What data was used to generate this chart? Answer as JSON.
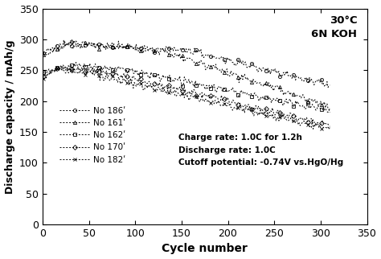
{
  "xlabel": "Cycle number",
  "ylabel": "Discharge capacity / mAh/g",
  "xlim": [
    0,
    350
  ],
  "ylim": [
    0,
    350
  ],
  "xticks": [
    0,
    50,
    100,
    150,
    200,
    250,
    300,
    350
  ],
  "yticks": [
    0,
    50,
    100,
    150,
    200,
    250,
    300,
    350
  ],
  "annotation_top": "30°C\n6N KOH",
  "annotation_box": "Charge rate: 1.0C for 1.2h\nDischarge rate: 1.0C\nCutoff potential: -0.74V vs.HgO/Hg",
  "series": [
    {
      "label": "No 186ʹ",
      "marker": "o",
      "start_y": 278,
      "peak_x": 25,
      "peak_y": 292,
      "flat_end_x": 150,
      "flat_end_y": 283,
      "end_x": 310,
      "end_y": 225
    },
    {
      "label": "No 161ʹ",
      "marker": "^",
      "start_y": 272,
      "peak_x": 30,
      "peak_y": 295,
      "flat_end_x": 130,
      "flat_end_y": 280,
      "end_x": 310,
      "end_y": 190
    },
    {
      "label": "No 162ʹ",
      "marker": "s",
      "start_y": 245,
      "peak_x": 35,
      "peak_y": 258,
      "flat_end_x": 80,
      "flat_end_y": 252,
      "end_x": 310,
      "end_y": 183
    },
    {
      "label": "No 170ʹ",
      "marker": "D",
      "start_y": 242,
      "peak_x": 20,
      "peak_y": 255,
      "flat_end_x": 60,
      "flat_end_y": 248,
      "end_x": 310,
      "end_y": 160
    },
    {
      "label": "No 182ʹ",
      "marker": "x",
      "start_y": 238,
      "peak_x": 15,
      "peak_y": 250,
      "flat_end_x": 50,
      "flat_end_y": 244,
      "end_x": 310,
      "end_y": 153
    }
  ]
}
